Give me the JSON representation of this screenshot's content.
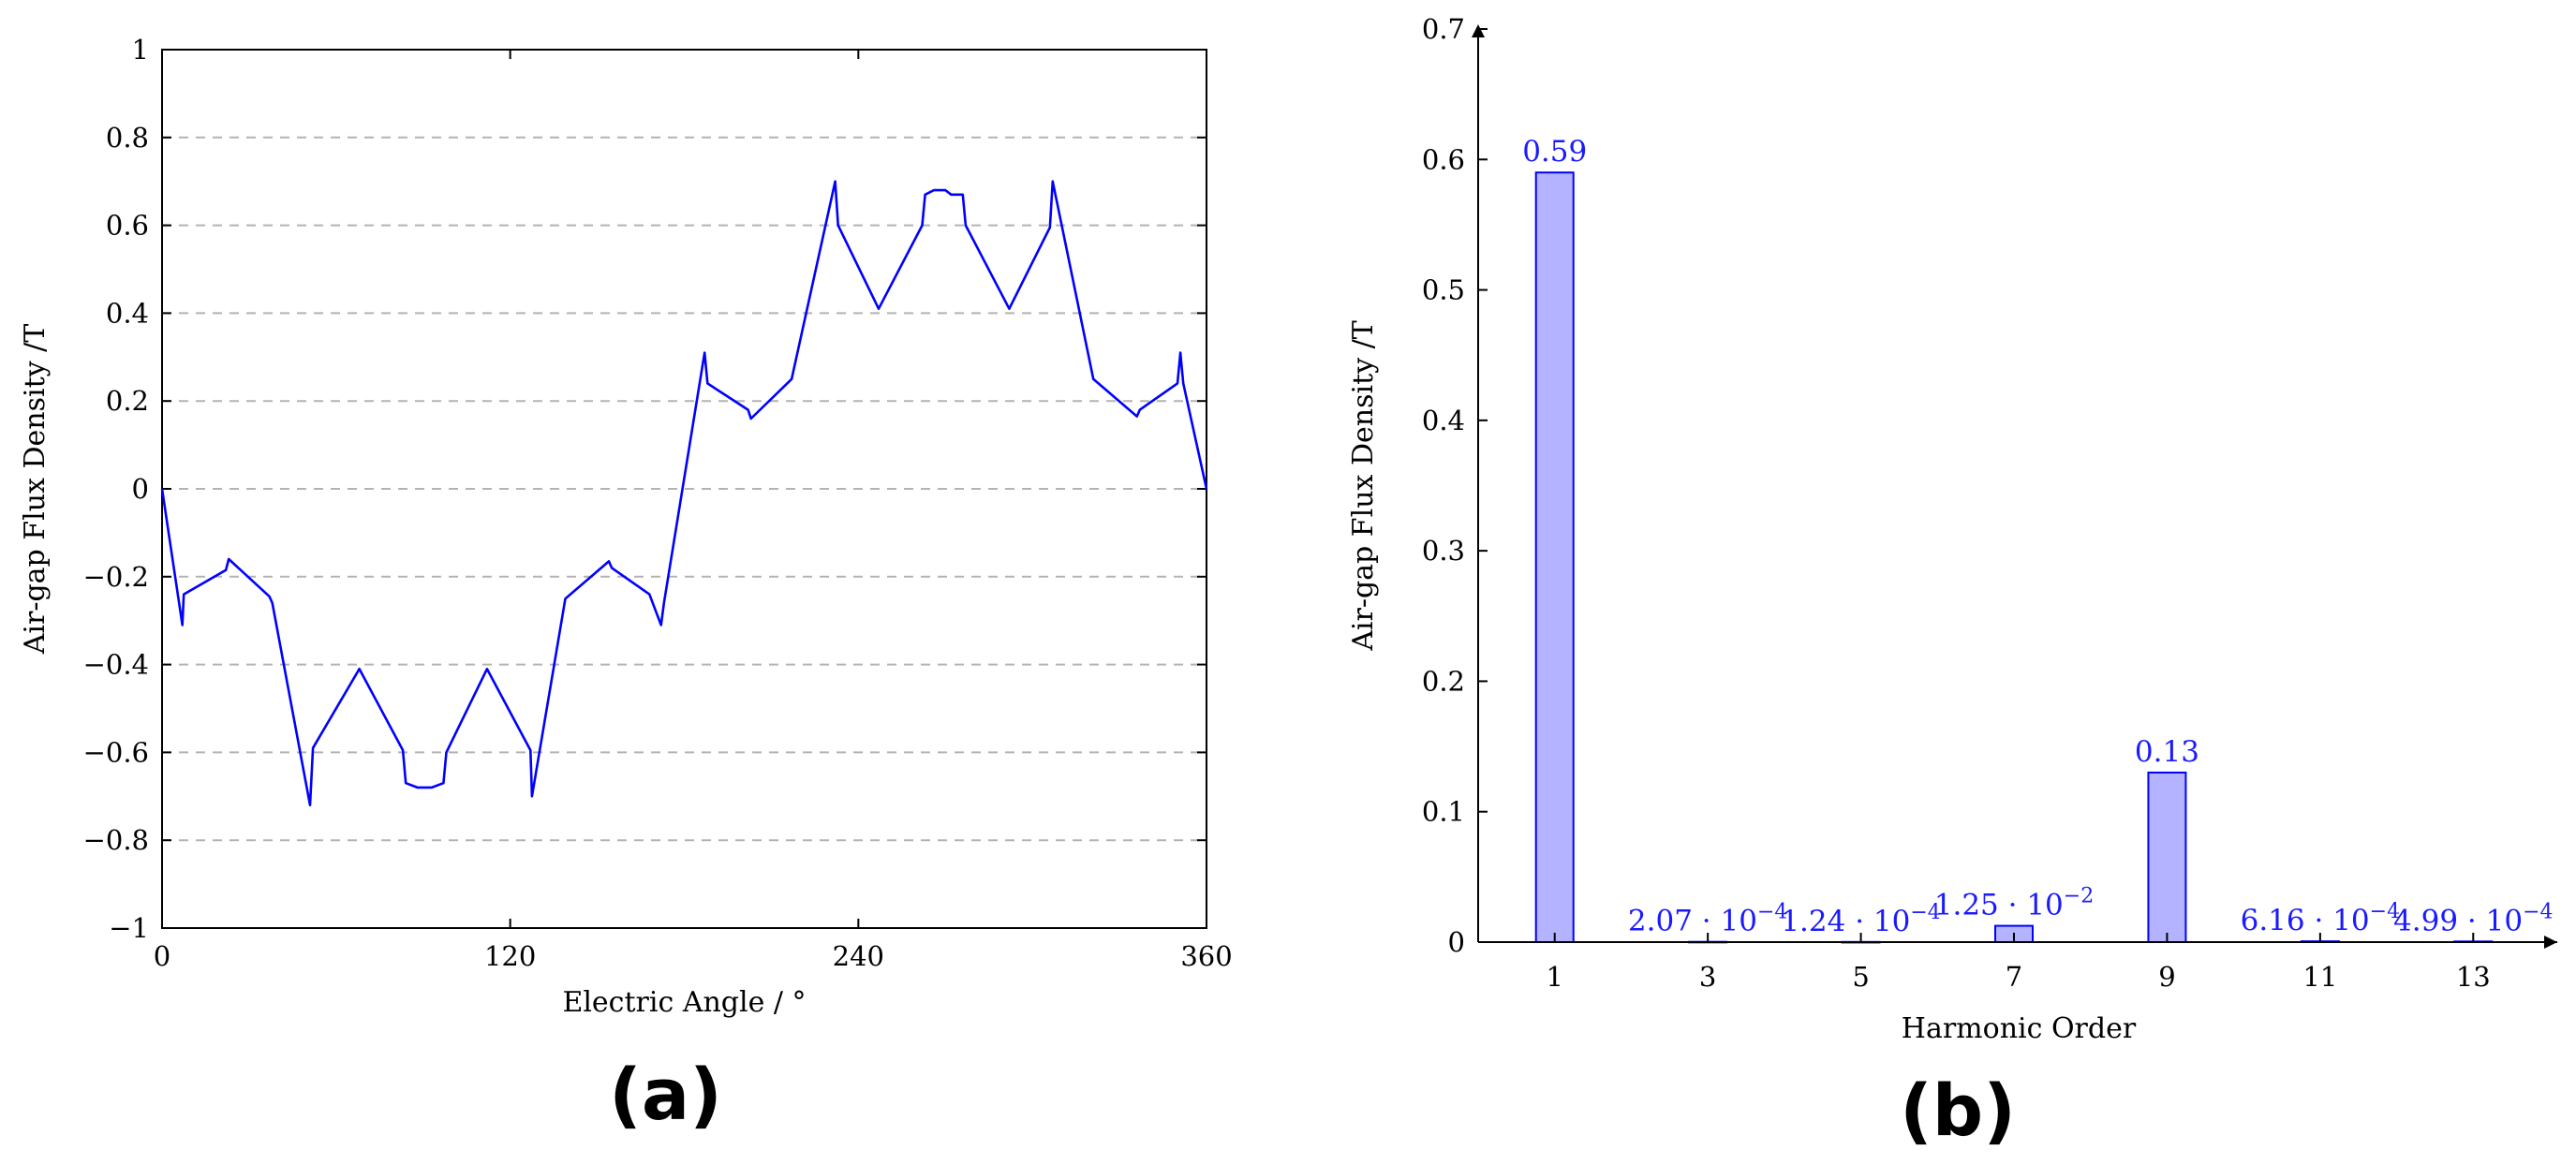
{
  "panels": {
    "a": {
      "label": "(a)"
    },
    "b": {
      "label": "(b)"
    }
  },
  "chart_data": [
    {
      "type": "line",
      "panel": "(a)",
      "xlabel": "Electric Angle / °",
      "ylabel": "Air-gap Flux Density /T",
      "xlim": [
        0,
        360
      ],
      "ylim": [
        -1,
        1
      ],
      "xticks": [
        0,
        120,
        240,
        360
      ],
      "xtick_labels": [
        "0",
        "120",
        "240",
        "360"
      ],
      "yticks": [
        -1,
        -0.8,
        -0.6,
        -0.4,
        -0.2,
        0,
        0.2,
        0.4,
        0.6,
        0.8,
        1
      ],
      "ytick_labels": [
        "−1",
        "−0.8",
        "−0.6",
        "−0.4",
        "−0.2",
        "0",
        "0.2",
        "0.4",
        "0.6",
        "0.8",
        "1"
      ],
      "grid": "horizontal dashed",
      "color": "#0000ff",
      "x": [
        0,
        7,
        7.5,
        22,
        23,
        37,
        38,
        51,
        52,
        68,
        83,
        84,
        88,
        93,
        97,
        98,
        112,
        127,
        127.5,
        139,
        154,
        155,
        168,
        172,
        173,
        187,
        188,
        202,
        203,
        217,
        232,
        233,
        247,
        262,
        263,
        266,
        270,
        272,
        276,
        277,
        292,
        306,
        307,
        321,
        336,
        337,
        350,
        351,
        352,
        360
      ],
      "y": [
        0,
        -0.31,
        -0.24,
        -0.185,
        -0.16,
        -0.245,
        -0.26,
        -0.72,
        -0.59,
        -0.41,
        -0.595,
        -0.67,
        -0.68,
        -0.68,
        -0.67,
        -0.6,
        -0.41,
        -0.595,
        -0.7,
        -0.25,
        -0.165,
        -0.18,
        -0.24,
        -0.31,
        -0.26,
        0.31,
        0.24,
        0.18,
        0.16,
        0.25,
        0.7,
        0.6,
        0.41,
        0.6,
        0.67,
        0.68,
        0.68,
        0.67,
        0.67,
        0.6,
        0.41,
        0.595,
        0.7,
        0.25,
        0.165,
        0.18,
        0.24,
        0.31,
        0.24,
        0
      ]
    },
    {
      "type": "bar",
      "panel": "(b)",
      "xlabel": "Harmonic Order",
      "ylabel": "Air-gap Flux Density /T",
      "ylim": [
        0,
        0.7
      ],
      "yticks": [
        0,
        0.1,
        0.2,
        0.3,
        0.4,
        0.5,
        0.6,
        0.7
      ],
      "ytick_labels": [
        "0",
        "0.1",
        "0.2",
        "0.3",
        "0.4",
        "0.5",
        "0.6",
        "0.7"
      ],
      "x_axis_range": [
        0,
        14
      ],
      "categories": [
        1,
        3,
        5,
        7,
        9,
        11,
        13
      ],
      "category_labels": [
        "1",
        "3",
        "5",
        "7",
        "9",
        "11",
        "13"
      ],
      "values": [
        0.59,
        0.000207,
        0.000124,
        0.0125,
        0.13,
        0.000616,
        0.000499
      ],
      "data_labels": [
        {
          "mantissa": "0.59",
          "exponent": ""
        },
        {
          "mantissa": "2.07 · 10",
          "exponent": "−4"
        },
        {
          "mantissa": "1.24 · 10",
          "exponent": "−4"
        },
        {
          "mantissa": "1.25 · 10",
          "exponent": "−2"
        },
        {
          "mantissa": "0.13",
          "exponent": ""
        },
        {
          "mantissa": "6.16 · 10",
          "exponent": "−4"
        },
        {
          "mantissa": "4.99 · 10",
          "exponent": "−4"
        }
      ],
      "bar_fill": "#b3b3ff",
      "bar_stroke": "#0000ff",
      "label_color": "#1a1aff"
    }
  ]
}
